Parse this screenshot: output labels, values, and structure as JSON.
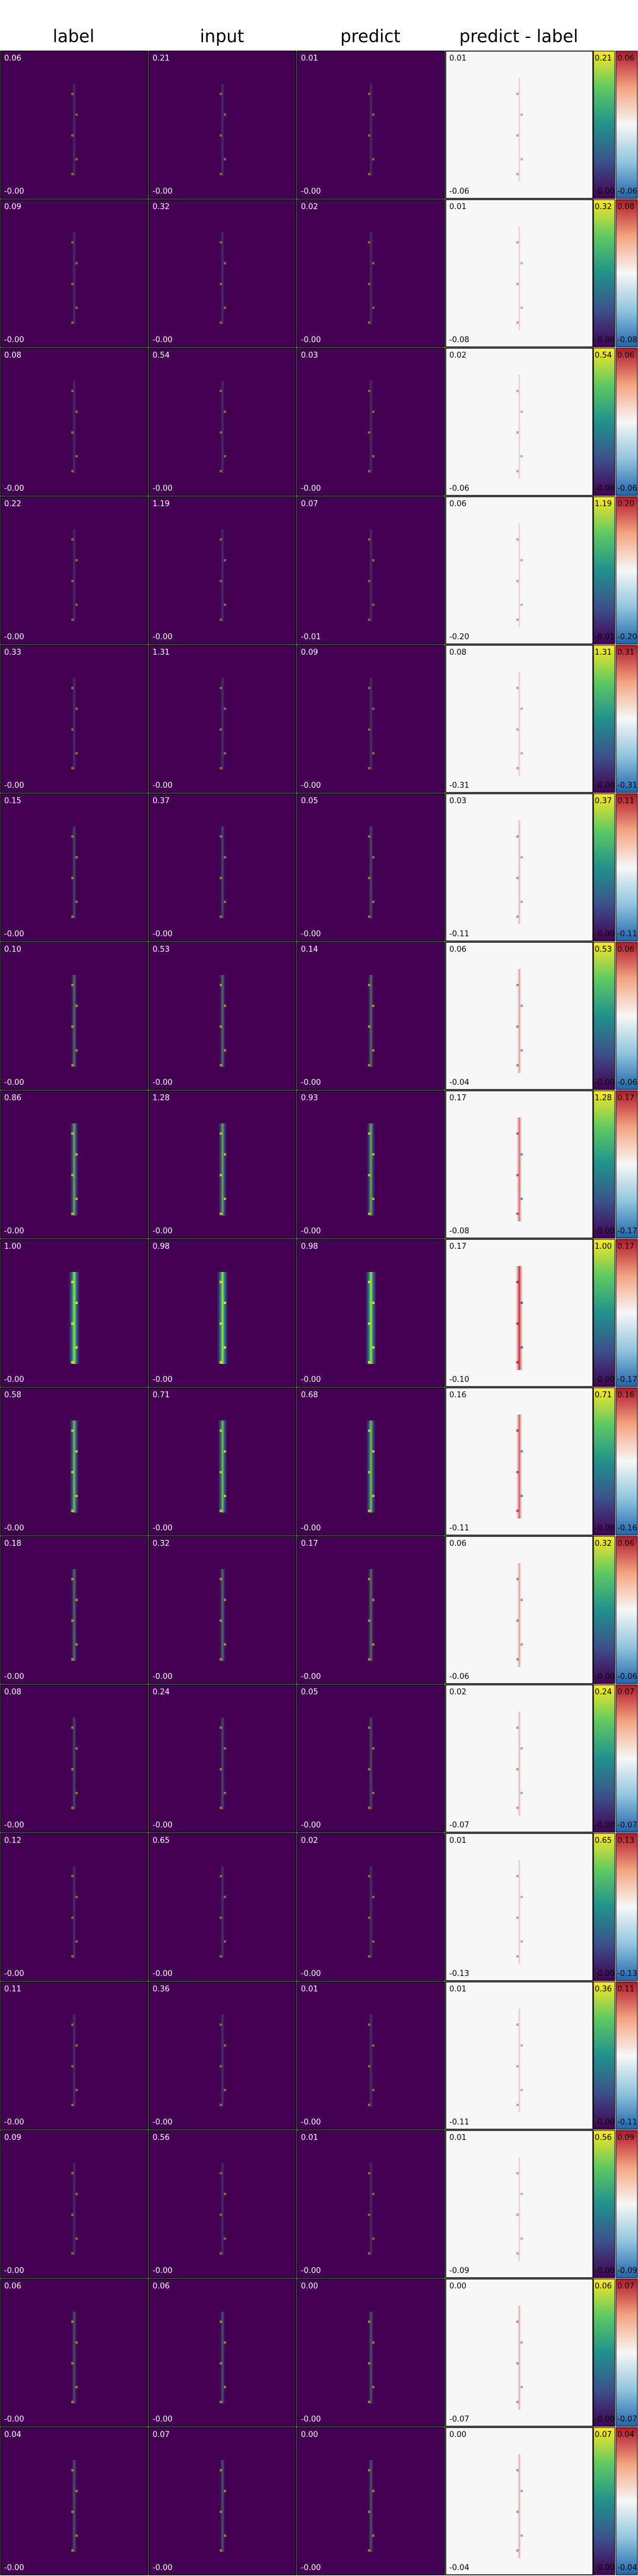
{
  "columns": [
    "label",
    "input",
    "predict",
    "predict - label"
  ],
  "colors": {
    "viridis_low": "#440154",
    "viridis_mid": "#21918c",
    "viridis_high": "#fde725",
    "diverging_neg": "#2166ac",
    "diverging_zero": "#f7f7f7",
    "diverging_pos": "#b2182b"
  },
  "chart_data": {
    "type": "heatmap",
    "layout": "grid of 17 rows x 4 panels with two shared colorbar strips",
    "rows": [
      {
        "label": {
          "max": "0.06",
          "min": "-0.00"
        },
        "input": {
          "max": "0.21",
          "min": "-0.00"
        },
        "predict": {
          "max": "0.01",
          "min": "-0.00"
        },
        "diff": {
          "max": "0.01",
          "min": "-0.06"
        },
        "cbar_seq": {
          "max": "0.21",
          "min": "-0.00"
        },
        "cbar_div": {
          "max": "0.06",
          "min": "-0.06"
        },
        "intensity": 0.1
      },
      {
        "label": {
          "max": "0.09",
          "min": "-0.00"
        },
        "input": {
          "max": "0.32",
          "min": "-0.00"
        },
        "predict": {
          "max": "0.02",
          "min": "-0.00"
        },
        "diff": {
          "max": "0.01",
          "min": "-0.08"
        },
        "cbar_seq": {
          "max": "0.32",
          "min": "-0.00"
        },
        "cbar_div": {
          "max": "0.08",
          "min": "-0.08"
        },
        "intensity": 0.1
      },
      {
        "label": {
          "max": "0.08",
          "min": "-0.00"
        },
        "input": {
          "max": "0.54",
          "min": "-0.00"
        },
        "predict": {
          "max": "0.03",
          "min": "-0.00"
        },
        "diff": {
          "max": "0.02",
          "min": "-0.06"
        },
        "cbar_seq": {
          "max": "0.54",
          "min": "-0.00"
        },
        "cbar_div": {
          "max": "0.06",
          "min": "-0.06"
        },
        "intensity": 0.1
      },
      {
        "label": {
          "max": "0.22",
          "min": "-0.00"
        },
        "input": {
          "max": "1.19",
          "min": "-0.00"
        },
        "predict": {
          "max": "0.07",
          "min": "-0.01"
        },
        "diff": {
          "max": "0.06",
          "min": "-0.20"
        },
        "cbar_seq": {
          "max": "1.19",
          "min": "-0.01"
        },
        "cbar_div": {
          "max": "0.20",
          "min": "-0.20"
        },
        "intensity": 0.1
      },
      {
        "label": {
          "max": "0.33",
          "min": "-0.00"
        },
        "input": {
          "max": "1.31",
          "min": "-0.00"
        },
        "predict": {
          "max": "0.09",
          "min": "-0.00"
        },
        "diff": {
          "max": "0.08",
          "min": "-0.31"
        },
        "cbar_seq": {
          "max": "1.31",
          "min": "-0.00"
        },
        "cbar_div": {
          "max": "0.31",
          "min": "-0.31"
        },
        "intensity": 0.12
      },
      {
        "label": {
          "max": "0.15",
          "min": "-0.00"
        },
        "input": {
          "max": "0.37",
          "min": "-0.00"
        },
        "predict": {
          "max": "0.05",
          "min": "-0.00"
        },
        "diff": {
          "max": "0.03",
          "min": "-0.11"
        },
        "cbar_seq": {
          "max": "0.37",
          "min": "-0.00"
        },
        "cbar_div": {
          "max": "0.11",
          "min": "-0.11"
        },
        "intensity": 0.2
      },
      {
        "label": {
          "max": "0.10",
          "min": "-0.00"
        },
        "input": {
          "max": "0.53",
          "min": "-0.00"
        },
        "predict": {
          "max": "0.14",
          "min": "-0.00"
        },
        "diff": {
          "max": "0.06",
          "min": "-0.04"
        },
        "cbar_seq": {
          "max": "0.53",
          "min": "-0.00"
        },
        "cbar_div": {
          "max": "0.06",
          "min": "-0.06"
        },
        "intensity": 0.35
      },
      {
        "label": {
          "max": "0.86",
          "min": "-0.00"
        },
        "input": {
          "max": "1.28",
          "min": "-0.00"
        },
        "predict": {
          "max": "0.93",
          "min": "-0.00"
        },
        "diff": {
          "max": "0.17",
          "min": "-0.08"
        },
        "cbar_seq": {
          "max": "1.28",
          "min": "-0.00"
        },
        "cbar_div": {
          "max": "0.17",
          "min": "-0.17"
        },
        "intensity": 0.6
      },
      {
        "label": {
          "max": "1.00",
          "min": "-0.00"
        },
        "input": {
          "max": "0.98",
          "min": "-0.00"
        },
        "predict": {
          "max": "0.98",
          "min": "-0.00"
        },
        "diff": {
          "max": "0.17",
          "min": "-0.10"
        },
        "cbar_seq": {
          "max": "1.00",
          "min": "-0.00"
        },
        "cbar_div": {
          "max": "0.17",
          "min": "-0.17"
        },
        "intensity": 0.95
      },
      {
        "label": {
          "max": "0.58",
          "min": "-0.00"
        },
        "input": {
          "max": "0.71",
          "min": "-0.00"
        },
        "predict": {
          "max": "0.68",
          "min": "-0.00"
        },
        "diff": {
          "max": "0.16",
          "min": "-0.11"
        },
        "cbar_seq": {
          "max": "0.71",
          "min": "-0.00"
        },
        "cbar_div": {
          "max": "0.16",
          "min": "-0.16"
        },
        "intensity": 0.7
      },
      {
        "label": {
          "max": "0.18",
          "min": "-0.00"
        },
        "input": {
          "max": "0.32",
          "min": "-0.00"
        },
        "predict": {
          "max": "0.17",
          "min": "-0.00"
        },
        "diff": {
          "max": "0.06",
          "min": "-0.06"
        },
        "cbar_seq": {
          "max": "0.32",
          "min": "-0.00"
        },
        "cbar_div": {
          "max": "0.06",
          "min": "-0.06"
        },
        "intensity": 0.35
      },
      {
        "label": {
          "max": "0.08",
          "min": "-0.00"
        },
        "input": {
          "max": "0.24",
          "min": "-0.00"
        },
        "predict": {
          "max": "0.05",
          "min": "-0.00"
        },
        "diff": {
          "max": "0.02",
          "min": "-0.07"
        },
        "cbar_seq": {
          "max": "0.24",
          "min": "-0.00"
        },
        "cbar_div": {
          "max": "0.07",
          "min": "-0.07"
        },
        "intensity": 0.2
      },
      {
        "label": {
          "max": "0.12",
          "min": "-0.00"
        },
        "input": {
          "max": "0.65",
          "min": "-0.00"
        },
        "predict": {
          "max": "0.02",
          "min": "-0.00"
        },
        "diff": {
          "max": "0.01",
          "min": "-0.13"
        },
        "cbar_seq": {
          "max": "0.65",
          "min": "-0.00"
        },
        "cbar_div": {
          "max": "0.13",
          "min": "-0.13"
        },
        "intensity": 0.12
      },
      {
        "label": {
          "max": "0.11",
          "min": "-0.00"
        },
        "input": {
          "max": "0.36",
          "min": "-0.00"
        },
        "predict": {
          "max": "0.01",
          "min": "-0.00"
        },
        "diff": {
          "max": "0.01",
          "min": "-0.11"
        },
        "cbar_seq": {
          "max": "0.36",
          "min": "-0.00"
        },
        "cbar_div": {
          "max": "0.11",
          "min": "-0.11"
        },
        "intensity": 0.12
      },
      {
        "label": {
          "max": "0.09",
          "min": "-0.00"
        },
        "input": {
          "max": "0.56",
          "min": "-0.00"
        },
        "predict": {
          "max": "0.01",
          "min": "-0.00"
        },
        "diff": {
          "max": "0.01",
          "min": "-0.09"
        },
        "cbar_seq": {
          "max": "0.56",
          "min": "-0.00"
        },
        "cbar_div": {
          "max": "0.09",
          "min": "-0.09"
        },
        "intensity": 0.1
      },
      {
        "label": {
          "max": "0.06",
          "min": "-0.00"
        },
        "input": {
          "max": "0.06",
          "min": "-0.00"
        },
        "predict": {
          "max": "0.00",
          "min": "-0.00"
        },
        "diff": {
          "max": "0.00",
          "min": "-0.07"
        },
        "cbar_seq": {
          "max": "0.06",
          "min": "-0.00"
        },
        "cbar_div": {
          "max": "0.07",
          "min": "-0.07"
        },
        "intensity": 0.25
      },
      {
        "label": {
          "max": "0.04",
          "min": "-0.00"
        },
        "input": {
          "max": "0.07",
          "min": "-0.00"
        },
        "predict": {
          "max": "0.00",
          "min": "-0.00"
        },
        "diff": {
          "max": "0.00",
          "min": "-0.04"
        },
        "cbar_seq": {
          "max": "0.07",
          "min": "-0.00"
        },
        "cbar_div": {
          "max": "0.04",
          "min": "-0.04"
        },
        "intensity": 0.25
      }
    ]
  }
}
